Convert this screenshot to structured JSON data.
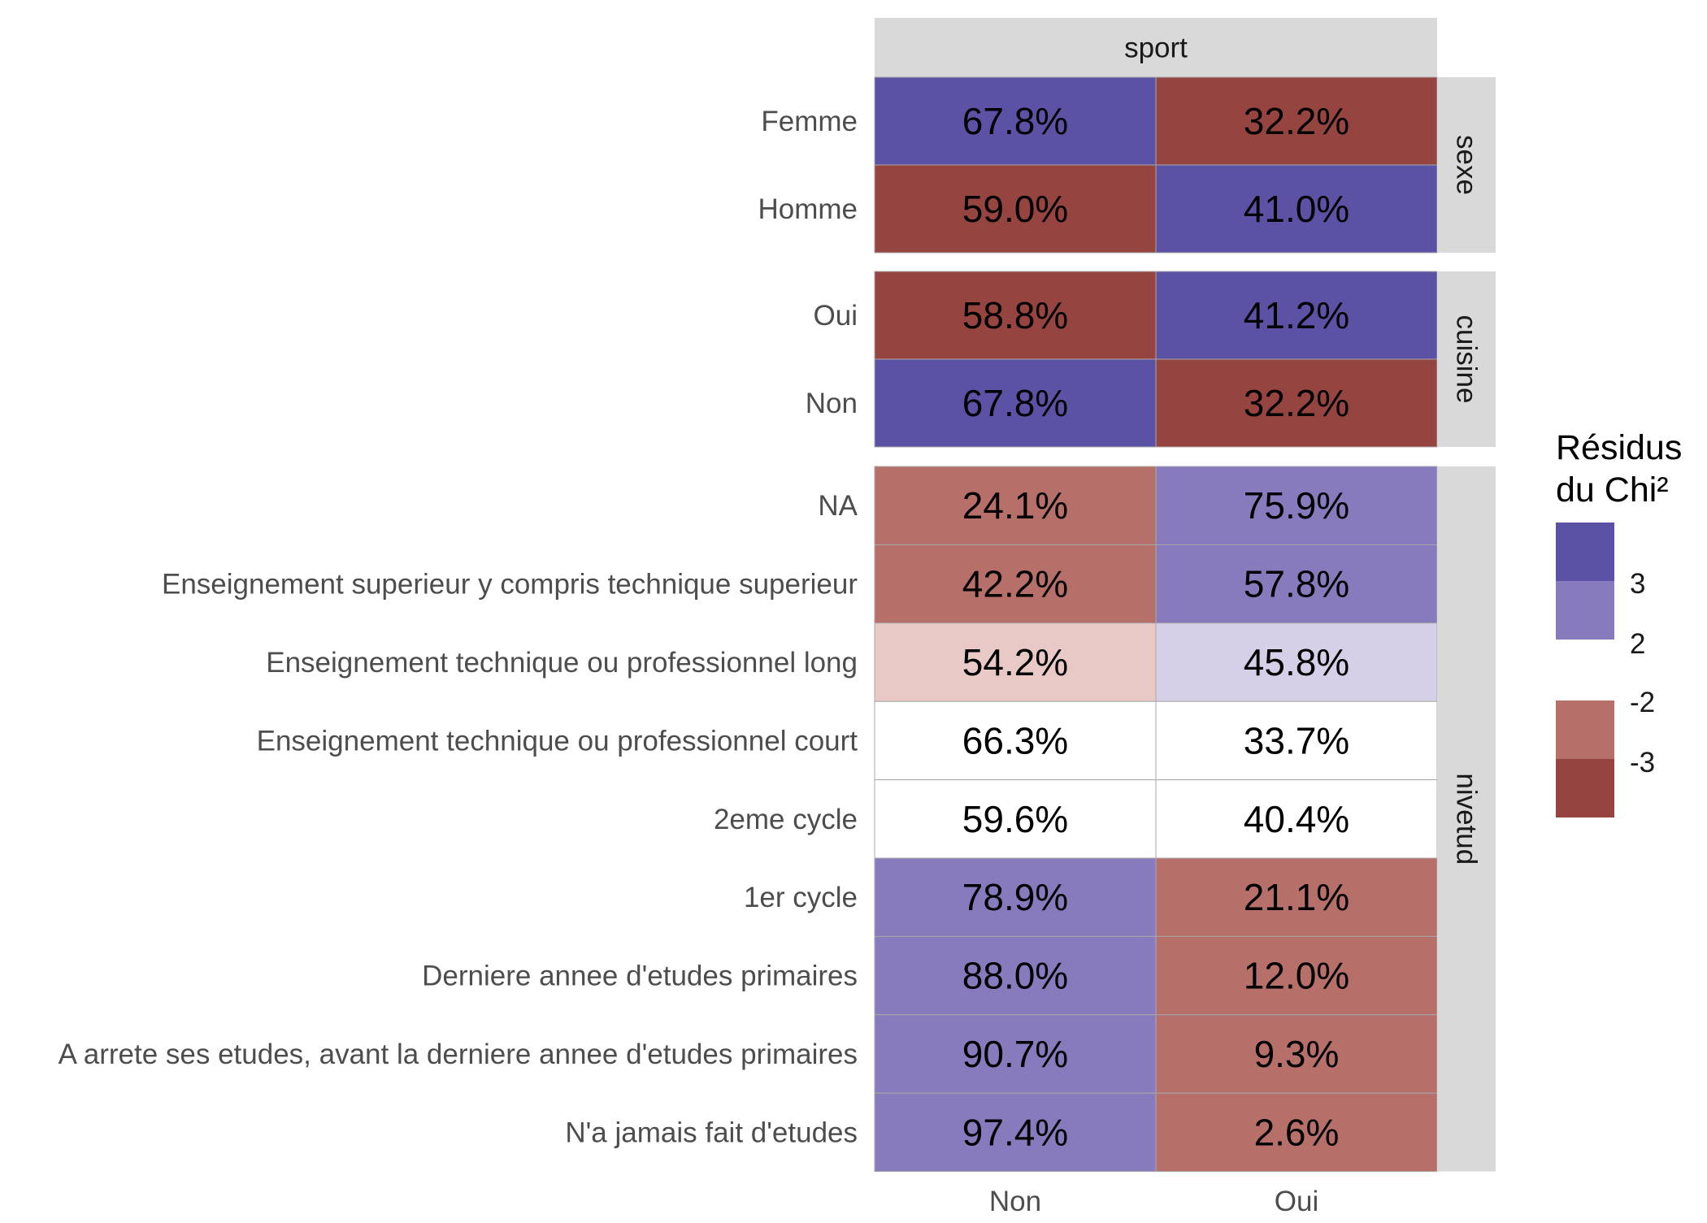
{
  "chart_data": {
    "type": "heatmap",
    "column_facet": "sport",
    "columns": [
      "Non",
      "Oui"
    ],
    "panels": [
      {
        "name": "sexe",
        "rows": [
          {
            "label": "Femme",
            "cells": [
              {
                "text": "67.8%",
                "residual_level": 3
              },
              {
                "text": "32.2%",
                "residual_level": -3
              }
            ]
          },
          {
            "label": "Homme",
            "cells": [
              {
                "text": "59.0%",
                "residual_level": -3
              },
              {
                "text": "41.0%",
                "residual_level": 3
              }
            ]
          }
        ]
      },
      {
        "name": "cuisine",
        "rows": [
          {
            "label": "Oui",
            "cells": [
              {
                "text": "58.8%",
                "residual_level": -3
              },
              {
                "text": "41.2%",
                "residual_level": 3
              }
            ]
          },
          {
            "label": "Non",
            "cells": [
              {
                "text": "67.8%",
                "residual_level": 3
              },
              {
                "text": "32.2%",
                "residual_level": -3
              }
            ]
          }
        ]
      },
      {
        "name": "nivetud",
        "rows": [
          {
            "label": "NA",
            "cells": [
              {
                "text": "24.1%",
                "residual_level": -2
              },
              {
                "text": "75.9%",
                "residual_level": 2
              }
            ]
          },
          {
            "label": "Enseignement superieur y compris technique superieur",
            "cells": [
              {
                "text": "42.2%",
                "residual_level": -2
              },
              {
                "text": "57.8%",
                "residual_level": 2
              }
            ]
          },
          {
            "label": "Enseignement technique ou professionnel long",
            "cells": [
              {
                "text": "54.2%",
                "residual_level": -1
              },
              {
                "text": "45.8%",
                "residual_level": 1
              }
            ]
          },
          {
            "label": "Enseignement technique ou professionnel court",
            "cells": [
              {
                "text": "66.3%",
                "residual_level": 0
              },
              {
                "text": "33.7%",
                "residual_level": 0
              }
            ]
          },
          {
            "label": "2eme cycle",
            "cells": [
              {
                "text": "59.6%",
                "residual_level": 0
              },
              {
                "text": "40.4%",
                "residual_level": 0
              }
            ]
          },
          {
            "label": "1er cycle",
            "cells": [
              {
                "text": "78.9%",
                "residual_level": 2
              },
              {
                "text": "21.1%",
                "residual_level": -2
              }
            ]
          },
          {
            "label": "Derniere annee d'etudes primaires",
            "cells": [
              {
                "text": "88.0%",
                "residual_level": 2
              },
              {
                "text": "12.0%",
                "residual_level": -2
              }
            ]
          },
          {
            "label": "A arrete ses etudes, avant la derniere annee d'etudes primaires",
            "cells": [
              {
                "text": "90.7%",
                "residual_level": 2
              },
              {
                "text": "9.3%",
                "residual_level": -2
              }
            ]
          },
          {
            "label": "N'a jamais fait d'etudes",
            "cells": [
              {
                "text": "97.4%",
                "residual_level": 2
              },
              {
                "text": "2.6%",
                "residual_level": -2
              }
            ]
          }
        ]
      }
    ],
    "legend": {
      "title_lines": [
        "Résidus",
        "du Chi²"
      ],
      "breaks": [
        "3",
        "2",
        "-2",
        "-3"
      ]
    },
    "colors": {
      "3": "#5b52a6",
      "2": "#877bbe",
      "1": "#d5d0e8",
      "0": "#ffffff",
      "-1": "#e8c9c6",
      "-2": "#b76f69",
      "-3": "#95443f",
      "strip_bg": "#d9d9d9",
      "cell_border": "#a8a8a8"
    }
  }
}
